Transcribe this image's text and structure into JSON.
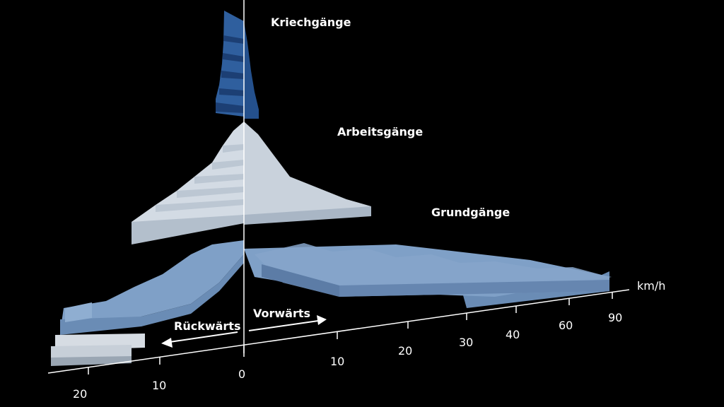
{
  "groups": {
    "creep": "Kriechgänge",
    "work": "Arbeitsgänge",
    "basic": "Grundgänge"
  },
  "axis": {
    "unit": "km/h",
    "forward_ticks": [
      "0",
      "10",
      "20",
      "30",
      "40",
      "60",
      "90"
    ],
    "reverse_ticks": [
      "10",
      "20"
    ]
  },
  "directions": {
    "reverse": "Rückwärts",
    "forward": "Vorwärts"
  },
  "colors": {
    "background": "#000000",
    "creep_top": "#2f5f9e",
    "creep_front": "#1c3f74",
    "work_top": "#d3dbe4",
    "work_front": "#b3bfcc",
    "basic_top": "#7fa0c7",
    "basic_front": "#6a8cb5",
    "reverse_light_top": "#d6dce3",
    "axis": "#ffffff"
  }
}
